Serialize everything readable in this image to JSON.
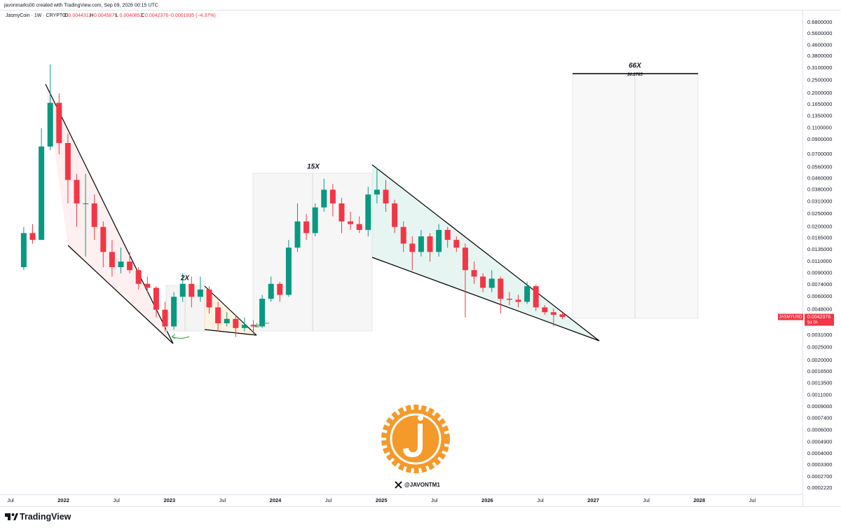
{
  "header": {
    "creator": "javonmarks00 created with TradingView.com, Sep 09, 2026 00:15 UTC",
    "symbol": "JasmyCoin · 1W · CRYPTO",
    "ohlc_labels": [
      "O",
      "H",
      "L",
      "C"
    ],
    "change": "−0.0001935 (−4.37%)"
  },
  "chart_data": {
    "type": "candlestick",
    "log_scale": true,
    "grid": false,
    "up_color": "#089981",
    "down_color": "#f23645",
    "x": [
      "2021-08",
      "2021-09",
      "2021-10",
      "2021-11",
      "2021-12",
      "2022-01",
      "2022-02",
      "2022-03",
      "2022-04",
      "2022-05",
      "2022-06",
      "2022-07",
      "2022-08",
      "2022-09",
      "2022-10",
      "2022-11",
      "2022-12",
      "2023-01",
      "2023-02",
      "2023-03",
      "2023-04",
      "2023-05",
      "2023-06",
      "2023-07",
      "2023-08",
      "2023-09",
      "2023-10",
      "2023-11",
      "2023-12",
      "2024-01",
      "2024-02",
      "2024-03",
      "2024-04",
      "2024-05",
      "2024-06",
      "2024-07",
      "2024-08",
      "2024-09",
      "2024-10",
      "2024-11",
      "2024-12",
      "2025-01",
      "2025-02",
      "2025-03",
      "2025-04",
      "2025-05",
      "2025-06",
      "2025-07",
      "2025-08",
      "2025-09",
      "2025-10",
      "2025-11",
      "2025-12",
      "2026-01",
      "2026-02",
      "2026-03",
      "2026-04",
      "2026-05",
      "2026-06",
      "2026-07",
      "2026-08",
      "2026-09"
    ],
    "open": [
      0.01,
      0.018,
      0.016,
      0.08,
      0.17,
      0.085,
      0.045,
      0.03,
      0.03,
      0.02,
      0.013,
      0.01,
      0.011,
      0.0095,
      0.0075,
      0.007,
      0.0048,
      0.0036,
      0.006,
      0.0075,
      0.006,
      0.0068,
      0.005,
      0.0038,
      0.0041,
      0.0035,
      0.0037,
      0.0036,
      0.0058,
      0.0075,
      0.0062,
      0.014,
      0.022,
      0.018,
      0.028,
      0.038,
      0.03,
      0.022,
      0.021,
      0.019,
      0.035,
      0.038,
      0.03,
      0.02,
      0.015,
      0.013,
      0.017,
      0.013,
      0.019,
      0.016,
      0.014,
      0.0095,
      0.0085,
      0.007,
      0.0082,
      0.0058,
      0.0057,
      0.0055,
      0.0072,
      0.005,
      0.0046,
      0.0044311
    ],
    "high": [
      0.02,
      0.021,
      0.11,
      0.33,
      0.2,
      0.1,
      0.05,
      0.05,
      0.035,
      0.022,
      0.016,
      0.014,
      0.013,
      0.01,
      0.0085,
      0.0072,
      0.0055,
      0.0065,
      0.009,
      0.0085,
      0.0085,
      0.0072,
      0.0055,
      0.0046,
      0.0044,
      0.0042,
      0.004,
      0.0062,
      0.0085,
      0.0078,
      0.016,
      0.03,
      0.025,
      0.03,
      0.046,
      0.042,
      0.033,
      0.026,
      0.024,
      0.04,
      0.055,
      0.045,
      0.032,
      0.022,
      0.017,
      0.019,
      0.018,
      0.021,
      0.02,
      0.017,
      0.015,
      0.011,
      0.009,
      0.0095,
      0.0085,
      0.0065,
      0.0062,
      0.0078,
      0.0074,
      0.0052,
      0.0049,
      0.0045875
    ],
    "low": [
      0.0095,
      0.015,
      0.016,
      0.075,
      0.07,
      0.03,
      0.02,
      0.012,
      0.016,
      0.01,
      0.0085,
      0.009,
      0.009,
      0.0068,
      0.0065,
      0.0042,
      0.0033,
      0.0034,
      0.0055,
      0.005,
      0.0055,
      0.0045,
      0.0033,
      0.0036,
      0.003,
      0.0033,
      0.0031,
      0.0035,
      0.0055,
      0.0055,
      0.006,
      0.013,
      0.016,
      0.017,
      0.026,
      0.024,
      0.018,
      0.019,
      0.018,
      0.017,
      0.03,
      0.026,
      0.018,
      0.013,
      0.0095,
      0.012,
      0.011,
      0.012,
      0.014,
      0.013,
      0.0042,
      0.0075,
      0.0065,
      0.0065,
      0.0045,
      0.0052,
      0.005,
      0.0053,
      0.0047,
      0.0044,
      0.0036,
      0.0040852
    ],
    "close": [
      0.018,
      0.016,
      0.08,
      0.17,
      0.085,
      0.045,
      0.03,
      0.03,
      0.02,
      0.013,
      0.01,
      0.011,
      0.0095,
      0.0075,
      0.007,
      0.0048,
      0.0036,
      0.006,
      0.0075,
      0.006,
      0.0068,
      0.005,
      0.0038,
      0.0041,
      0.0035,
      0.0037,
      0.0036,
      0.0058,
      0.0075,
      0.0062,
      0.014,
      0.022,
      0.018,
      0.028,
      0.038,
      0.03,
      0.022,
      0.021,
      0.019,
      0.035,
      0.038,
      0.03,
      0.02,
      0.015,
      0.013,
      0.017,
      0.013,
      0.019,
      0.016,
      0.014,
      0.0095,
      0.0085,
      0.007,
      0.0082,
      0.0058,
      0.0057,
      0.0055,
      0.0072,
      0.005,
      0.0046,
      0.0044,
      0.0042376
    ],
    "ylim": [
      0.0002,
      0.85
    ],
    "yticks": [
      {
        "value": 0.68,
        "label": "0.6800000"
      },
      {
        "value": 0.56,
        "label": "0.5600000"
      },
      {
        "value": 0.46,
        "label": "0.4600000"
      },
      {
        "value": 0.38,
        "label": "0.3800000"
      },
      {
        "value": 0.31,
        "label": "0.3100000"
      },
      {
        "value": 0.25,
        "label": "0.2500000"
      },
      {
        "value": 0.2,
        "label": "0.2000000"
      },
      {
        "value": 0.165,
        "label": "0.1650000"
      },
      {
        "value": 0.135,
        "label": "0.1350000"
      },
      {
        "value": 0.11,
        "label": "0.1100000"
      },
      {
        "value": 0.09,
        "label": "0.0900000"
      },
      {
        "value": 0.07,
        "label": "0.0700000"
      },
      {
        "value": 0.056,
        "label": "0.0560000"
      },
      {
        "value": 0.046,
        "label": "0.0460000"
      },
      {
        "value": 0.038,
        "label": "0.0380000"
      },
      {
        "value": 0.031,
        "label": "0.0310000"
      },
      {
        "value": 0.025,
        "label": "0.0250000"
      },
      {
        "value": 0.02,
        "label": "0.0200000"
      },
      {
        "value": 0.0165,
        "label": "0.0165000"
      },
      {
        "value": 0.0135,
        "label": "0.0135000"
      },
      {
        "value": 0.011,
        "label": "0.0110000"
      },
      {
        "value": 0.009,
        "label": "0.0090000"
      },
      {
        "value": 0.0074,
        "label": "0.0074000"
      },
      {
        "value": 0.006,
        "label": "0.0060000"
      },
      {
        "value": 0.0048,
        "label": "0.0048000"
      },
      {
        "value": 0.0031,
        "label": "0.0031000"
      },
      {
        "value": 0.0025,
        "label": "0.0025000"
      },
      {
        "value": 0.002,
        "label": "0.0020000"
      },
      {
        "value": 0.00165,
        "label": "0.0016500"
      },
      {
        "value": 0.00135,
        "label": "0.0013500"
      },
      {
        "value": 0.0011,
        "label": "0.0011000"
      },
      {
        "value": 0.0009,
        "label": "0.0009000"
      },
      {
        "value": 0.00074,
        "label": "0.0007400"
      },
      {
        "value": 0.0006,
        "label": "0.0006000"
      },
      {
        "value": 0.00049,
        "label": "0.0004900"
      },
      {
        "value": 0.0004,
        "label": "0.0004000"
      },
      {
        "value": 0.00033,
        "label": "0.0003300"
      },
      {
        "value": 0.00027,
        "label": "0.0002700"
      },
      {
        "value": 0.000222,
        "label": "0.0002220"
      }
    ],
    "xlim": [
      "2021-06",
      "2028-12"
    ],
    "xticks": [
      {
        "value": "2021-07",
        "label": "Jul"
      },
      {
        "value": "2022-01",
        "label": "2022"
      },
      {
        "value": "2022-07",
        "label": "Jul"
      },
      {
        "value": "2023-01",
        "label": "2023"
      },
      {
        "value": "2023-07",
        "label": "Jul"
      },
      {
        "value": "2024-01",
        "label": "2024"
      },
      {
        "value": "2024-07",
        "label": "Jul"
      },
      {
        "value": "2025-01",
        "label": "2025"
      },
      {
        "value": "2025-07",
        "label": "Jul"
      },
      {
        "value": "2026-01",
        "label": "2026"
      },
      {
        "value": "2026-07",
        "label": "Jul"
      },
      {
        "value": "2027-01",
        "label": "2027"
      },
      {
        "value": "2027-07",
        "label": "Jul"
      },
      {
        "value": "2028-01",
        "label": "2028"
      },
      {
        "value": "2028-07",
        "label": "Jul"
      }
    ],
    "annotations": [
      "2X",
      "15X",
      "66X",
      "$0.2785"
    ],
    "price_label": {
      "symbol": "JASMYUSD",
      "countdown": "5d 0h"
    }
  },
  "watermark": {
    "handle": "@JAVONTM1"
  },
  "footer": {
    "brand": "TradingView"
  }
}
